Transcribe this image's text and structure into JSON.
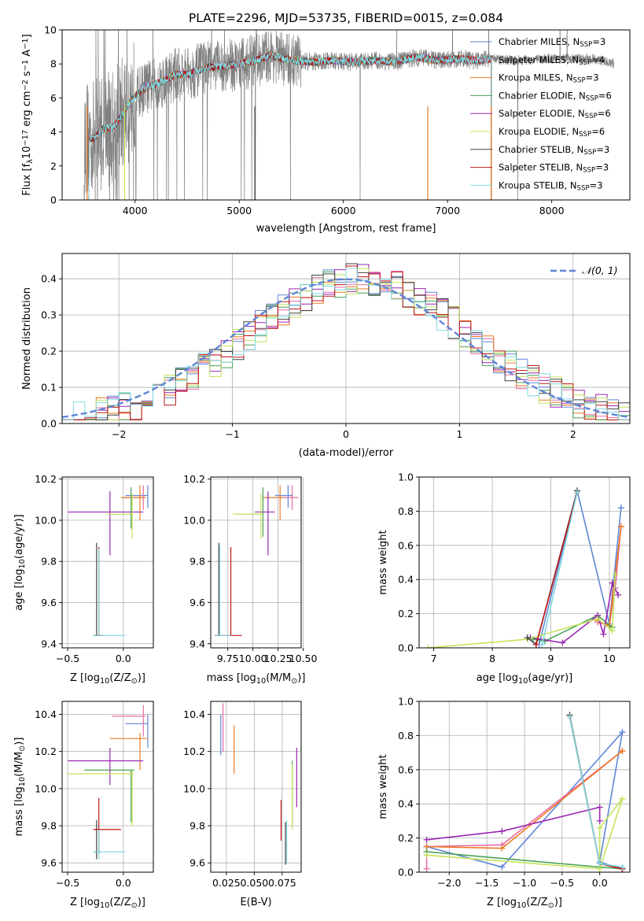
{
  "figure_title": "PLATE=2296, MJD=53735, FIBERID=0015, z=0.084",
  "colors": {
    "Chabrier MILES": "#5f86d6",
    "Salpeter MILES": "#e66ca6",
    "Kroupa MILES": "#ee7a22",
    "Chabrier ELODIE": "#4aa056",
    "Salpeter ELODIE": "#9a27b3",
    "Kroupa ELODIE": "#c4e35a",
    "Chabrier STELIB": "#404040",
    "Salpeter STELIB": "#c01818",
    "Kroupa STELIB": "#7fd9e0",
    "data": "#808080",
    "normal": "#5f86d6",
    "grid": "#b0b0b0"
  },
  "chart_data": [
    {
      "type": "line",
      "id": "spectrum",
      "title": "",
      "xlabel": "wavelength [Angstrom, rest frame]",
      "ylabel": "Flux [fλ10⁻¹⁷ erg cm⁻² s⁻¹ A⁻¹]",
      "xlim": [
        3300,
        8750
      ],
      "ylim": [
        0,
        10
      ],
      "xticks": [
        4000,
        5000,
        6000,
        7000,
        8000
      ],
      "yticks": [
        0,
        2,
        4,
        6,
        8,
        10
      ],
      "grid": false,
      "legend_position": "right",
      "legend": [
        "Chabrier MILES, NSSP=3",
        "Salpeter MILES, NSSP=4",
        "Kroupa MILES, NSSP=3",
        "Chabrier ELODIE, NSSP=6",
        "Salpeter ELODIE, NSSP=6",
        "Kroupa ELODIE, NSSP=6",
        "Chabrier STELIB, NSSP=3",
        "Salpeter STELIB, NSSP=3",
        "Kroupa STELIB, NSSP=3"
      ],
      "continuum": {
        "x": [
          3500,
          3600,
          3700,
          3800,
          3900,
          4000,
          4100,
          4200,
          4300,
          4400,
          4500,
          4700,
          4900,
          5100,
          5300,
          5500,
          5700,
          5900,
          6100,
          6300,
          6500,
          6700,
          6900,
          7100,
          7300,
          7420,
          7600,
          8000,
          8400,
          8600
        ],
        "y": [
          3.7,
          3.6,
          4.2,
          4.3,
          5.3,
          6.1,
          6.6,
          6.8,
          7.1,
          7.4,
          7.4,
          7.8,
          7.9,
          8.1,
          8.5,
          8.2,
          8.1,
          8.2,
          8.1,
          8.2,
          8.1,
          8.4,
          8.2,
          8.3,
          8.2,
          8.3,
          8.2,
          8.3,
          8.3,
          8.0
        ]
      },
      "model_range_x": [
        3520,
        7420
      ]
    },
    {
      "type": "line",
      "id": "residuals",
      "title": "",
      "xlabel": "(data-model)/error",
      "ylabel": "Normed distribution",
      "xlim": [
        -2.5,
        2.5
      ],
      "ylim": [
        0,
        0.47
      ],
      "xticks": [
        -2,
        -1,
        0,
        1,
        2
      ],
      "yticks": [
        0.0,
        0.1,
        0.2,
        0.3,
        0.4
      ],
      "grid": true,
      "legend_position": "top-right",
      "legend": [
        "N(0,1)"
      ],
      "normal_peak": 0.3989
    },
    {
      "type": "scatter",
      "id": "age_vs_Z",
      "title": "",
      "xlabel": "Z [log10(Z/Z⊙)]",
      "ylabel": "age  [log10(age/yr)]",
      "xlim": [
        -0.55,
        0.27
      ],
      "ylim": [
        9.38,
        10.21
      ],
      "xticks": [
        -0.5,
        0.0
      ],
      "yticks": [
        9.4,
        9.6,
        9.8,
        10.0,
        10.2
      ],
      "grid": true,
      "points": [
        {
          "model": "Chabrier MILES",
          "x": 0.22,
          "y": 10.12,
          "x0": 0.02,
          "x1": 0.22,
          "y0": 10.06,
          "y1": 10.17
        },
        {
          "model": "Salpeter MILES",
          "x": 0.18,
          "y": 10.11,
          "x0": 0.0,
          "x1": 0.2,
          "y0": 10.05,
          "y1": 10.17
        },
        {
          "model": "Kroupa MILES",
          "x": 0.15,
          "y": 10.11,
          "x0": -0.02,
          "x1": 0.2,
          "y0": 10.0,
          "y1": 10.17
        },
        {
          "model": "Chabrier ELODIE",
          "x": 0.07,
          "y": 10.03,
          "x0": -0.12,
          "x1": 0.07,
          "y0": 9.96,
          "y1": 10.16
        },
        {
          "model": "Salpeter ELODIE",
          "x": -0.12,
          "y": 10.04,
          "x0": -0.5,
          "x1": 0.18,
          "y0": 9.83,
          "y1": 10.14
        },
        {
          "model": "Kroupa ELODIE",
          "x": 0.08,
          "y": 10.03,
          "x0": -0.15,
          "x1": 0.09,
          "y0": 9.91,
          "y1": 10.13
        },
        {
          "model": "Chabrier STELIB",
          "x": -0.24,
          "y": 9.44,
          "x0": -0.27,
          "x1": -0.2,
          "y0": 9.44,
          "y1": 9.89
        },
        {
          "model": "Salpeter STELIB",
          "x": -0.22,
          "y": 9.44,
          "x0": -0.26,
          "x1": -0.18,
          "y0": 9.44,
          "y1": 9.87
        },
        {
          "model": "Kroupa STELIB",
          "x": -0.22,
          "y": 9.44,
          "x0": -0.27,
          "x1": 0.02,
          "y0": 9.44,
          "y1": 9.86
        }
      ]
    },
    {
      "type": "scatter",
      "id": "age_vs_mass",
      "title": "",
      "xlabel": "mass [log10(M/M⊙)]",
      "ylabel": "",
      "xlim": [
        9.58,
        10.48
      ],
      "ylim": [
        9.38,
        10.21
      ],
      "xticks": [
        9.75,
        10.0,
        10.25,
        10.5
      ],
      "xticklabels": [
        "9.75",
        "10.00",
        "10.25",
        "10.50"
      ],
      "yticks": [
        9.4,
        9.6,
        9.8,
        10.0,
        10.2
      ],
      "grid": true,
      "points": [
        {
          "model": "Chabrier MILES",
          "x": 10.35,
          "y": 10.12,
          "x0": 10.22,
          "x1": 10.4,
          "y0": 10.06,
          "y1": 10.17
        },
        {
          "model": "Salpeter MILES",
          "x": 10.39,
          "y": 10.11,
          "x0": 10.28,
          "x1": 10.45,
          "y0": 10.05,
          "y1": 10.17
        },
        {
          "model": "Kroupa MILES",
          "x": 10.27,
          "y": 10.11,
          "x0": 10.1,
          "x1": 10.3,
          "y0": 10.0,
          "y1": 10.17
        },
        {
          "model": "Chabrier ELODIE",
          "x": 10.1,
          "y": 10.03,
          "x0": 9.82,
          "x1": 10.1,
          "y0": 9.92,
          "y1": 10.16
        },
        {
          "model": "Salpeter ELODIE",
          "x": 10.15,
          "y": 10.04,
          "x0": 10.02,
          "x1": 10.22,
          "y0": 9.83,
          "y1": 10.14
        },
        {
          "model": "Kroupa ELODIE",
          "x": 10.08,
          "y": 10.03,
          "x0": 9.8,
          "x1": 10.1,
          "y0": 9.91,
          "y1": 10.13
        },
        {
          "model": "Chabrier STELIB",
          "x": 9.66,
          "y": 9.44,
          "x0": 9.62,
          "x1": 9.68,
          "y0": 9.44,
          "y1": 9.89
        },
        {
          "model": "Salpeter STELIB",
          "x": 9.78,
          "y": 9.44,
          "x0": 9.65,
          "x1": 9.89,
          "y0": 9.44,
          "y1": 9.87
        },
        {
          "model": "Kroupa STELIB",
          "x": 9.67,
          "y": 9.44,
          "x0": 9.62,
          "x1": 9.78,
          "y0": 9.44,
          "y1": 9.88
        }
      ]
    },
    {
      "type": "line",
      "id": "weight_vs_age",
      "title": "",
      "xlabel": "age  [log10(age/yr)]",
      "ylabel": "mass weight",
      "xlim": [
        6.75,
        10.35
      ],
      "ylim": [
        0,
        1.0
      ],
      "xticks": [
        7,
        8,
        9,
        10
      ],
      "yticks": [
        0.0,
        0.2,
        0.4,
        0.6,
        0.8,
        1.0
      ],
      "grid": true,
      "series": [
        {
          "model": "Chabrier MILES",
          "x": [
            8.8,
            9.45,
            10.0,
            10.2
          ],
          "y": [
            0.02,
            0.92,
            0.14,
            0.82
          ]
        },
        {
          "model": "Salpeter MILES",
          "x": [
            9.8,
            10.0,
            10.1,
            10.2
          ],
          "y": [
            0.15,
            0.13,
            0.35,
            0.71
          ]
        },
        {
          "model": "Kroupa MILES",
          "x": [
            9.8,
            10.0,
            10.2
          ],
          "y": [
            0.16,
            0.13,
            0.71
          ]
        },
        {
          "model": "Chabrier ELODIE",
          "x": [
            8.7,
            8.9,
            9.8,
            10.05
          ],
          "y": [
            0.05,
            0.04,
            0.19,
            0.12
          ]
        },
        {
          "model": "Salpeter ELODIE",
          "x": [
            8.65,
            9.2,
            9.8,
            9.9,
            10.05,
            10.15
          ],
          "y": [
            0.06,
            0.03,
            0.19,
            0.08,
            0.38,
            0.31
          ]
        },
        {
          "model": "Kroupa ELODIE",
          "x": [
            6.9,
            8.6,
            9.8,
            10.05,
            10.1
          ],
          "y": [
            0.0,
            0.05,
            0.17,
            0.1,
            0.43
          ]
        },
        {
          "model": "Chabrier STELIB",
          "x": [
            8.6,
            8.75,
            9.45
          ],
          "y": [
            0.06,
            0.02,
            0.92
          ]
        },
        {
          "model": "Salpeter STELIB",
          "x": [
            8.75,
            9.45
          ],
          "y": [
            0.02,
            0.91
          ]
        },
        {
          "model": "Kroupa STELIB",
          "x": [
            8.85,
            9.45
          ],
          "y": [
            0.02,
            0.91
          ]
        }
      ]
    },
    {
      "type": "scatter",
      "id": "mass_vs_Z",
      "title": "",
      "xlabel": "Z [log10(Z/Z⊙)]",
      "ylabel": "mass [log10(M/M⊙)]",
      "xlim": [
        -0.55,
        0.27
      ],
      "ylim": [
        9.55,
        10.47
      ],
      "xticks": [
        -0.5,
        0.0
      ],
      "yticks": [
        9.6,
        9.8,
        10.0,
        10.2,
        10.4
      ],
      "grid": true,
      "points": [
        {
          "model": "Chabrier MILES",
          "x": 0.22,
          "y": 10.35,
          "x0": 0.02,
          "x1": 0.22,
          "y0": 10.22,
          "y1": 10.4
        },
        {
          "model": "Salpeter MILES",
          "x": 0.18,
          "y": 10.39,
          "x0": -0.1,
          "x1": 0.2,
          "y0": 10.28,
          "y1": 10.45
        },
        {
          "model": "Kroupa MILES",
          "x": 0.15,
          "y": 10.27,
          "x0": -0.12,
          "x1": 0.22,
          "y0": 10.1,
          "y1": 10.3
        },
        {
          "model": "Chabrier ELODIE",
          "x": 0.07,
          "y": 10.1,
          "x0": -0.35,
          "x1": 0.1,
          "y0": 9.82,
          "y1": 10.1
        },
        {
          "model": "Salpeter ELODIE",
          "x": -0.12,
          "y": 10.15,
          "x0": -0.5,
          "x1": 0.18,
          "y0": 10.02,
          "y1": 10.22
        },
        {
          "model": "Kroupa ELODIE",
          "x": 0.08,
          "y": 10.08,
          "x0": -0.5,
          "x1": 0.09,
          "y0": 9.8,
          "y1": 10.1
        },
        {
          "model": "Chabrier STELIB",
          "x": -0.24,
          "y": 9.66,
          "x0": -0.27,
          "x1": -0.2,
          "y0": 9.62,
          "y1": 9.83
        },
        {
          "model": "Salpeter STELIB",
          "x": -0.22,
          "y": 9.78,
          "x0": -0.27,
          "x1": -0.02,
          "y0": 9.65,
          "y1": 9.95
        },
        {
          "model": "Kroupa STELIB",
          "x": -0.22,
          "y": 9.66,
          "x0": -0.27,
          "x1": 0.02,
          "y0": 9.62,
          "y1": 9.78
        }
      ]
    },
    {
      "type": "scatter",
      "id": "mass_vs_ebv",
      "title": "",
      "xlabel": "E(B-V)",
      "ylabel": "",
      "xlim": [
        0.011,
        0.092
      ],
      "ylim": [
        9.55,
        10.47
      ],
      "xticks": [
        0.025,
        0.05,
        0.075
      ],
      "xticklabels": [
        "0.025",
        "0.050",
        "0.075"
      ],
      "yticks": [
        9.6,
        9.8,
        10.0,
        10.2,
        10.4
      ],
      "grid": true,
      "points": [
        {
          "model": "Chabrier MILES",
          "x": 0.02,
          "y": 10.3,
          "x0": 0.02,
          "x1": 0.02,
          "y0": 10.18,
          "y1": 10.4
        },
        {
          "model": "Salpeter MILES",
          "x": 0.022,
          "y": 10.35,
          "x0": 0.022,
          "x1": 0.022,
          "y0": 10.2,
          "y1": 10.46
        },
        {
          "model": "Kroupa MILES",
          "x": 0.032,
          "y": 10.2,
          "x0": 0.032,
          "x1": 0.032,
          "y0": 10.08,
          "y1": 10.34
        },
        {
          "model": "Chabrier ELODIE",
          "x": 0.084,
          "y": 10.0,
          "x0": 0.084,
          "x1": 0.084,
          "y0": 9.8,
          "y1": 10.15
        },
        {
          "model": "Salpeter ELODIE",
          "x": 0.088,
          "y": 10.05,
          "x0": 0.088,
          "x1": 0.088,
          "y0": 9.9,
          "y1": 10.22
        },
        {
          "model": "Kroupa ELODIE",
          "x": 0.084,
          "y": 9.95,
          "x0": 0.084,
          "x1": 0.084,
          "y0": 9.78,
          "y1": 10.13
        },
        {
          "model": "Chabrier STELIB",
          "x": 0.078,
          "y": 9.7,
          "x0": 0.078,
          "x1": 0.078,
          "y0": 9.59,
          "y1": 9.82
        },
        {
          "model": "Salpeter STELIB",
          "x": 0.074,
          "y": 9.83,
          "x0": 0.074,
          "x1": 0.074,
          "y0": 9.72,
          "y1": 9.94
        },
        {
          "model": "Kroupa STELIB",
          "x": 0.079,
          "y": 9.7,
          "x0": 0.079,
          "x1": 0.079,
          "y0": 9.6,
          "y1": 9.83
        }
      ]
    },
    {
      "type": "line",
      "id": "weight_vs_Z",
      "title": "",
      "xlabel": "Z [log10(Z/Z⊙)]",
      "ylabel": "mass weight",
      "xlim": [
        -2.4,
        0.4
      ],
      "ylim": [
        0,
        1.0
      ],
      "xticks": [
        -2.0,
        -1.5,
        -1.0,
        -0.5,
        0.0
      ],
      "yticks": [
        0.0,
        0.2,
        0.4,
        0.6,
        0.8,
        1.0
      ],
      "grid": true,
      "series": [
        {
          "model": "Chabrier MILES",
          "x": [
            -2.3,
            -1.3,
            0.3,
            0.0,
            0.3
          ],
          "y": [
            0.15,
            0.03,
            0.82,
            0.06,
            0.02
          ]
        },
        {
          "model": "Salpeter MILES",
          "x": [
            -2.3,
            -2.3,
            -1.3,
            0.3
          ],
          "y": [
            0.02,
            0.15,
            0.16,
            0.71
          ]
        },
        {
          "model": "Kroupa MILES",
          "x": [
            -2.3,
            -1.3,
            0.3
          ],
          "y": [
            0.15,
            0.14,
            0.71
          ]
        },
        {
          "model": "Chabrier ELODIE",
          "x": [
            -2.3,
            0.0,
            0.3
          ],
          "y": [
            0.12,
            0.03,
            0.02
          ]
        },
        {
          "model": "Salpeter ELODIE",
          "x": [
            -2.3,
            -1.3,
            0.0,
            0.0
          ],
          "y": [
            0.19,
            0.24,
            0.38,
            0.3
          ]
        },
        {
          "model": "Kroupa ELODIE",
          "x": [
            -2.3,
            0.0,
            0.3,
            0.0,
            0.0
          ],
          "y": [
            0.1,
            0.02,
            0.43,
            0.26,
            0.0
          ]
        },
        {
          "model": "Chabrier STELIB",
          "x": [
            -0.4,
            0.0,
            0.3
          ],
          "y": [
            0.92,
            0.05,
            0.02
          ]
        },
        {
          "model": "Salpeter STELIB",
          "x": [
            -0.4,
            0.0,
            0.3
          ],
          "y": [
            0.91,
            0.05,
            0.02
          ]
        },
        {
          "model": "Kroupa STELIB",
          "x": [
            -0.4,
            0.0,
            0.3
          ],
          "y": [
            0.91,
            0.05,
            0.03
          ]
        }
      ]
    }
  ]
}
